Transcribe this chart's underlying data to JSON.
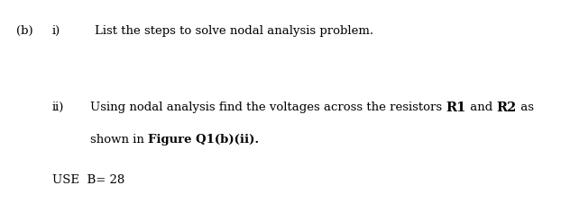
{
  "background_color": "#ffffff",
  "label_b": "(b)",
  "label_i": "i)",
  "text_i": "List the steps to solve nodal analysis problem.",
  "label_ii": "ii)",
  "text_ii_part1": "Using nodal analysis find the voltages across the resistors ",
  "text_ii_R1": "R1",
  "text_ii_and": " and ",
  "text_ii_R2": "R2",
  "text_ii_as": " as",
  "text_ii_part2_prefix": "shown in ",
  "text_ii_Figure": "Figure Q1(b)(ii).",
  "text_use": "USE  B= 28",
  "font_size": 9.5,
  "text_color": "#000000",
  "fig_width": 6.22,
  "fig_height": 2.36,
  "dpi": 100
}
